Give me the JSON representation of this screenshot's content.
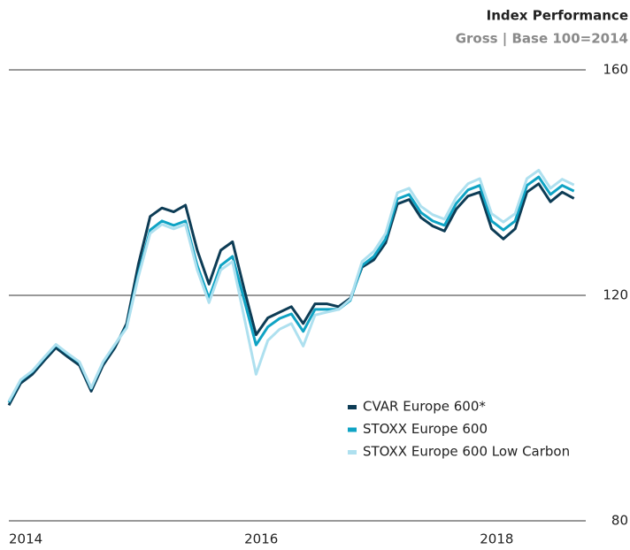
{
  "chart_data": {
    "type": "line",
    "title": "Index Performance",
    "subtitle": "Gross | Base 100=2014",
    "x": [
      2014.0,
      2014.1,
      2014.2,
      2014.3,
      2014.4,
      2014.5,
      2014.6,
      2014.7,
      2014.8,
      2014.9,
      2015.0,
      2015.1,
      2015.2,
      2015.3,
      2015.4,
      2015.5,
      2015.6,
      2015.7,
      2015.8,
      2015.9,
      2016.0,
      2016.1,
      2016.2,
      2016.3,
      2016.4,
      2016.5,
      2016.6,
      2016.7,
      2016.8,
      2016.9,
      2017.0,
      2017.1,
      2017.2,
      2017.3,
      2017.4,
      2017.5,
      2017.6,
      2017.7,
      2017.8,
      2017.9,
      2018.0,
      2018.1,
      2018.2,
      2018.3,
      2018.4,
      2018.5,
      2018.6,
      2018.7,
      2018.8
    ],
    "series": [
      {
        "name": "CVAR Europe 600*",
        "color": "#0d3c55",
        "values": [
          100.5,
          104.4,
          106,
          108.4,
          110.7,
          109.1,
          107.6,
          103,
          107.6,
          110.7,
          115,
          125.5,
          134,
          135.5,
          134.8,
          136,
          128,
          122,
          128,
          129.5,
          121,
          113,
          116,
          117,
          118,
          115,
          118.5,
          118.5,
          118,
          119.5,
          125,
          126.3,
          129.3,
          136.2,
          137,
          133.8,
          132.3,
          131.4,
          135.3,
          137.6,
          138.3,
          131.8,
          130,
          131.8,
          138.3,
          139.8,
          136.6,
          138.3,
          137.2
        ]
      },
      {
        "name": "STOXX Europe 600",
        "color": "#0fa3c4",
        "values": [
          101,
          104.9,
          106.5,
          108.9,
          111.2,
          109.6,
          108.1,
          103.5,
          108.1,
          111.2,
          114.4,
          123.8,
          131.6,
          133.2,
          132.4,
          133.2,
          125.3,
          119.5,
          125.3,
          126.9,
          119.1,
          111.2,
          114.4,
          115.9,
          116.7,
          113.6,
          117.5,
          117.5,
          117.5,
          119.1,
          125.3,
          126.9,
          130,
          137.1,
          137.9,
          134.7,
          133.2,
          132.4,
          136.3,
          138.7,
          139.5,
          133.2,
          131.6,
          133.2,
          139.5,
          141,
          137.9,
          139.5,
          138.5
        ]
      },
      {
        "name": "STOXX Europe 600 Low Carbon",
        "color": "#aee0ef",
        "values": [
          101.2,
          105,
          106.6,
          109,
          111.3,
          109.7,
          108.2,
          103.6,
          108.2,
          111.3,
          114.2,
          123.3,
          131,
          132.6,
          131.8,
          132.6,
          124.5,
          118.7,
          124.5,
          126,
          116,
          106,
          112,
          114,
          115,
          111,
          116.5,
          117,
          117.5,
          119.3,
          126,
          127.8,
          131,
          138.2,
          139,
          135.8,
          134.3,
          133.5,
          137.4,
          139.8,
          140.7,
          134.5,
          133,
          134.5,
          140.7,
          142.2,
          139,
          140.6,
          139.6
        ]
      }
    ],
    "xlim": [
      2014,
      2018.9
    ],
    "xticks": [
      2014,
      2016,
      2018
    ],
    "ylim": [
      80,
      160
    ],
    "yticks": [
      80,
      120,
      160
    ],
    "grid": true
  }
}
